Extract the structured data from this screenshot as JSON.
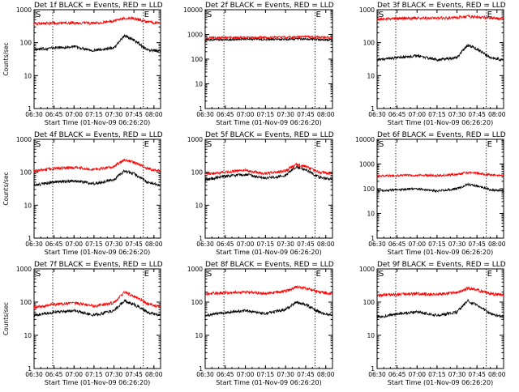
{
  "figure": {
    "colors": {
      "events": "#000000",
      "lld": "#ff0000",
      "axes": "#000000",
      "background": "#ffffff"
    },
    "marker_labels": [
      "S",
      "E"
    ]
  },
  "chart_data": [
    {
      "type": "line",
      "title": "Det 1f BLACK = Events, RED = LLD",
      "xlabel": "Start Time (01-Nov-09 06:26:20)",
      "ylabel": "Counts/sec",
      "x_ticks": [
        "06:30",
        "06:45",
        "07:00",
        "07:15",
        "07:30",
        "07:45",
        "08:00"
      ],
      "x_range": [
        "06:30",
        "08:05"
      ],
      "y_scale": "log",
      "ylim": [
        1,
        1000
      ],
      "y_ticks": [
        "1",
        "10",
        "100",
        "1000"
      ],
      "markers": [
        {
          "label": "S",
          "time": "06:44"
        },
        {
          "label": "E",
          "time": "07:52"
        }
      ],
      "series": [
        {
          "color": "black",
          "time": [
            "06:30",
            "06:45",
            "07:00",
            "07:15",
            "07:30",
            "07:38",
            "07:45",
            "07:55",
            "08:05"
          ],
          "values": [
            60,
            70,
            75,
            58,
            70,
            165,
            120,
            60,
            55
          ]
        },
        {
          "color": "red",
          "time": [
            "06:30",
            "06:45",
            "07:00",
            "07:15",
            "07:30",
            "07:38",
            "07:45",
            "07:55",
            "08:05"
          ],
          "values": [
            380,
            390,
            400,
            390,
            450,
            560,
            540,
            420,
            380
          ]
        }
      ]
    },
    {
      "type": "line",
      "title": "Det 2f BLACK = Events, RED = LLD",
      "xlabel": "Start Time (01-Nov-09 06:26:20)",
      "ylabel": "",
      "x_ticks": [
        "06:30",
        "06:45",
        "07:00",
        "07:15",
        "07:30",
        "07:45",
        "08:00"
      ],
      "x_range": [
        "06:30",
        "08:05"
      ],
      "y_scale": "log",
      "ylim": [
        1,
        10000
      ],
      "y_ticks": [
        "1",
        "10",
        "100",
        "1000",
        "10000"
      ],
      "markers": [
        {
          "label": "S",
          "time": "06:44"
        },
        {
          "label": "E",
          "time": "07:52"
        }
      ],
      "series": [
        {
          "color": "black",
          "time": [
            "06:30",
            "06:45",
            "07:00",
            "07:15",
            "07:30",
            "07:45",
            "07:55",
            "08:05"
          ],
          "values": [
            600,
            620,
            650,
            630,
            640,
            660,
            620,
            600
          ]
        },
        {
          "color": "red",
          "time": [
            "06:30",
            "06:45",
            "07:00",
            "07:15",
            "07:30",
            "07:45",
            "07:55",
            "08:05"
          ],
          "values": [
            720,
            740,
            760,
            750,
            770,
            790,
            760,
            740
          ]
        }
      ]
    },
    {
      "type": "line",
      "title": "Det 3f BLACK = Events, RED = LLD",
      "xlabel": "Start Time (01-Nov-09 06:26:20)",
      "ylabel": "",
      "x_ticks": [
        "06:30",
        "06:45",
        "07:00",
        "07:15",
        "07:30",
        "07:45",
        "08:00"
      ],
      "x_range": [
        "06:30",
        "08:05"
      ],
      "y_scale": "log",
      "ylim": [
        1,
        1000
      ],
      "y_ticks": [
        "1",
        "10",
        "100",
        "1000"
      ],
      "markers": [
        {
          "label": "S",
          "time": "06:44"
        },
        {
          "label": "E",
          "time": "07:52"
        }
      ],
      "series": [
        {
          "color": "black",
          "time": [
            "06:30",
            "06:45",
            "07:00",
            "07:15",
            "07:30",
            "07:38",
            "07:45",
            "07:55",
            "08:05"
          ],
          "values": [
            30,
            35,
            40,
            30,
            35,
            85,
            65,
            35,
            30
          ]
        },
        {
          "color": "red",
          "time": [
            "06:30",
            "06:45",
            "07:00",
            "07:15",
            "07:30",
            "07:38",
            "07:45",
            "07:55",
            "08:05"
          ],
          "values": [
            520,
            540,
            560,
            550,
            580,
            620,
            600,
            560,
            530
          ]
        }
      ]
    },
    {
      "type": "line",
      "title": "Det 4f BLACK = Events, RED = LLD",
      "xlabel": "Start Time (01-Nov-09 06:26:20)",
      "ylabel": "Counts/sec",
      "x_ticks": [
        "06:30",
        "06:45",
        "07:00",
        "07:15",
        "07:30",
        "07:45",
        "08:00"
      ],
      "x_range": [
        "06:30",
        "08:05"
      ],
      "y_scale": "log",
      "ylim": [
        1,
        1000
      ],
      "y_ticks": [
        "1",
        "10",
        "100",
        "1000"
      ],
      "markers": [
        {
          "label": "S",
          "time": "06:44"
        },
        {
          "label": "E",
          "time": "07:52"
        }
      ],
      "series": [
        {
          "color": "black",
          "time": [
            "06:30",
            "06:45",
            "07:00",
            "07:15",
            "07:30",
            "07:38",
            "07:45",
            "07:55",
            "08:05"
          ],
          "values": [
            40,
            50,
            55,
            45,
            60,
            110,
            90,
            50,
            40
          ]
        },
        {
          "color": "red",
          "time": [
            "06:30",
            "06:45",
            "07:00",
            "07:15",
            "07:30",
            "07:38",
            "07:45",
            "07:55",
            "08:05"
          ],
          "values": [
            110,
            130,
            140,
            120,
            150,
            240,
            200,
            130,
            110
          ]
        }
      ]
    },
    {
      "type": "line",
      "title": "Det 5f BLACK = Events, RED = LLD",
      "xlabel": "Start Time (01-Nov-09 06:26:20)",
      "ylabel": "",
      "x_ticks": [
        "06:30",
        "06:45",
        "07:00",
        "07:15",
        "07:30",
        "07:45",
        "08:00"
      ],
      "x_range": [
        "06:30",
        "08:05"
      ],
      "y_scale": "log",
      "ylim": [
        1,
        1000
      ],
      "y_ticks": [
        "1",
        "10",
        "100",
        "1000"
      ],
      "markers": [
        {
          "label": "S",
          "time": "06:44"
        },
        {
          "label": "E",
          "time": "07:52"
        }
      ],
      "series": [
        {
          "color": "black",
          "time": [
            "06:30",
            "06:45",
            "07:00",
            "07:15",
            "07:30",
            "07:38",
            "07:45",
            "07:55",
            "08:05"
          ],
          "values": [
            60,
            75,
            85,
            65,
            80,
            150,
            120,
            70,
            60
          ]
        },
        {
          "color": "red",
          "time": [
            "06:30",
            "06:45",
            "07:00",
            "07:15",
            "07:30",
            "07:38",
            "07:45",
            "07:55",
            "08:05"
          ],
          "values": [
            90,
            100,
            115,
            90,
            110,
            170,
            150,
            100,
            90
          ]
        }
      ]
    },
    {
      "type": "line",
      "title": "Det 6f BLACK = Events, RED = LLD",
      "xlabel": "Start Time (01-Nov-09 06:26:20)",
      "ylabel": "",
      "x_ticks": [
        "06:30",
        "06:45",
        "07:00",
        "07:15",
        "07:30",
        "07:45",
        "08:00"
      ],
      "x_range": [
        "06:30",
        "08:05"
      ],
      "y_scale": "log",
      "ylim": [
        1,
        10000
      ],
      "y_ticks": [
        "1",
        "10",
        "100",
        "1000",
        "10000"
      ],
      "markers": [
        {
          "label": "S",
          "time": "06:44"
        },
        {
          "label": "E",
          "time": "07:52"
        }
      ],
      "series": [
        {
          "color": "black",
          "time": [
            "06:30",
            "06:45",
            "07:00",
            "07:15",
            "07:30",
            "07:38",
            "07:45",
            "07:55",
            "08:05"
          ],
          "values": [
            80,
            90,
            100,
            80,
            100,
            150,
            130,
            90,
            80
          ]
        },
        {
          "color": "red",
          "time": [
            "06:30",
            "06:45",
            "07:00",
            "07:15",
            "07:30",
            "07:38",
            "07:45",
            "07:55",
            "08:05"
          ],
          "values": [
            330,
            340,
            350,
            340,
            380,
            450,
            430,
            360,
            340
          ]
        }
      ]
    },
    {
      "type": "line",
      "title": "Det 7f BLACK = Events, RED = LLD",
      "xlabel": "Start Time (01-Nov-09 06:26:20)",
      "ylabel": "Counts/sec",
      "x_ticks": [
        "06:30",
        "06:45",
        "07:00",
        "07:15",
        "07:30",
        "07:45",
        "08:00"
      ],
      "x_range": [
        "06:30",
        "08:05"
      ],
      "y_scale": "log",
      "ylim": [
        1,
        1000
      ],
      "y_ticks": [
        "1",
        "10",
        "100",
        "1000"
      ],
      "markers": [
        {
          "label": "S",
          "time": "06:44"
        },
        {
          "label": "E",
          "time": "07:52"
        }
      ],
      "series": [
        {
          "color": "black",
          "time": [
            "06:30",
            "06:45",
            "07:00",
            "07:15",
            "07:30",
            "07:38",
            "07:45",
            "07:55",
            "08:05"
          ],
          "values": [
            40,
            50,
            55,
            40,
            55,
            110,
            85,
            50,
            40
          ]
        },
        {
          "color": "red",
          "time": [
            "06:30",
            "06:45",
            "07:00",
            "07:15",
            "07:30",
            "07:38",
            "07:45",
            "07:55",
            "08:05"
          ],
          "values": [
            70,
            85,
            95,
            75,
            95,
            200,
            150,
            90,
            70
          ]
        }
      ]
    },
    {
      "type": "line",
      "title": "Det 8f BLACK = Events, RED = LLD",
      "xlabel": "Start Time (01-Nov-09 06:26:20)",
      "ylabel": "",
      "x_ticks": [
        "06:30",
        "06:45",
        "07:00",
        "07:15",
        "07:30",
        "07:45",
        "08:00"
      ],
      "x_range": [
        "06:30",
        "08:05"
      ],
      "y_scale": "log",
      "ylim": [
        1,
        1000
      ],
      "y_ticks": [
        "1",
        "10",
        "100",
        "1000"
      ],
      "markers": [
        {
          "label": "S",
          "time": "06:44"
        },
        {
          "label": "E",
          "time": "07:52"
        }
      ],
      "series": [
        {
          "color": "black",
          "time": [
            "06:30",
            "06:45",
            "07:00",
            "07:15",
            "07:30",
            "07:38",
            "07:45",
            "07:55",
            "08:05"
          ],
          "values": [
            40,
            48,
            55,
            45,
            60,
            100,
            85,
            50,
            40
          ]
        },
        {
          "color": "red",
          "time": [
            "06:30",
            "06:45",
            "07:00",
            "07:15",
            "07:30",
            "07:38",
            "07:45",
            "07:55",
            "08:05"
          ],
          "values": [
            180,
            190,
            200,
            180,
            210,
            290,
            260,
            200,
            180
          ]
        }
      ]
    },
    {
      "type": "line",
      "title": "Det 9f BLACK = Events, RED = LLD",
      "xlabel": "Start Time (01-Nov-09 06:26:20)",
      "ylabel": "",
      "x_ticks": [
        "06:30",
        "06:45",
        "07:00",
        "07:15",
        "07:30",
        "07:45",
        "08:00"
      ],
      "x_range": [
        "06:30",
        "08:05"
      ],
      "y_scale": "log",
      "ylim": [
        1,
        1000
      ],
      "y_ticks": [
        "1",
        "10",
        "100",
        "1000"
      ],
      "markers": [
        {
          "label": "S",
          "time": "06:44"
        },
        {
          "label": "E",
          "time": "07:52"
        }
      ],
      "series": [
        {
          "color": "black",
          "time": [
            "06:30",
            "06:45",
            "07:00",
            "07:15",
            "07:30",
            "07:38",
            "07:45",
            "07:55",
            "08:05"
          ],
          "values": [
            35,
            45,
            50,
            40,
            50,
            110,
            80,
            45,
            35
          ]
        },
        {
          "color": "red",
          "time": [
            "06:30",
            "06:45",
            "07:00",
            "07:15",
            "07:30",
            "07:38",
            "07:45",
            "07:55",
            "08:05"
          ],
          "values": [
            160,
            170,
            180,
            170,
            190,
            260,
            230,
            180,
            160
          ]
        }
      ]
    }
  ]
}
